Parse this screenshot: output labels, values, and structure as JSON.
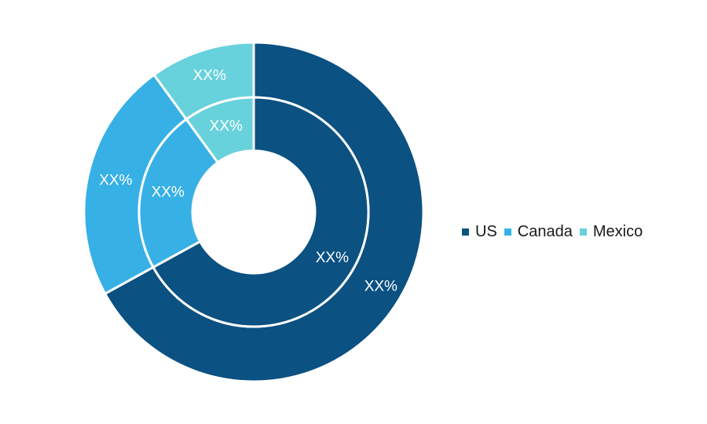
{
  "chart_data": {
    "type": "pie",
    "subtype": "nested-donut",
    "categories": [
      "US",
      "Canada",
      "Mexico"
    ],
    "colors": [
      "#0b5182",
      "#36b0e5",
      "#68d2dc"
    ],
    "rings": [
      {
        "ring": "outer",
        "values": [
          67,
          23,
          10
        ],
        "labels": [
          "XX%",
          "XX%",
          "XX%"
        ]
      },
      {
        "ring": "inner",
        "values": [
          67,
          23,
          10
        ],
        "labels": [
          "XX%",
          "XX%",
          "XX%"
        ]
      }
    ],
    "legend": {
      "placement": "right",
      "items": [
        {
          "label": "US",
          "color": "#0b5182"
        },
        {
          "label": "Canada",
          "color": "#36b0e5"
        },
        {
          "label": "Mexico",
          "color": "#68d2dc"
        }
      ]
    }
  }
}
